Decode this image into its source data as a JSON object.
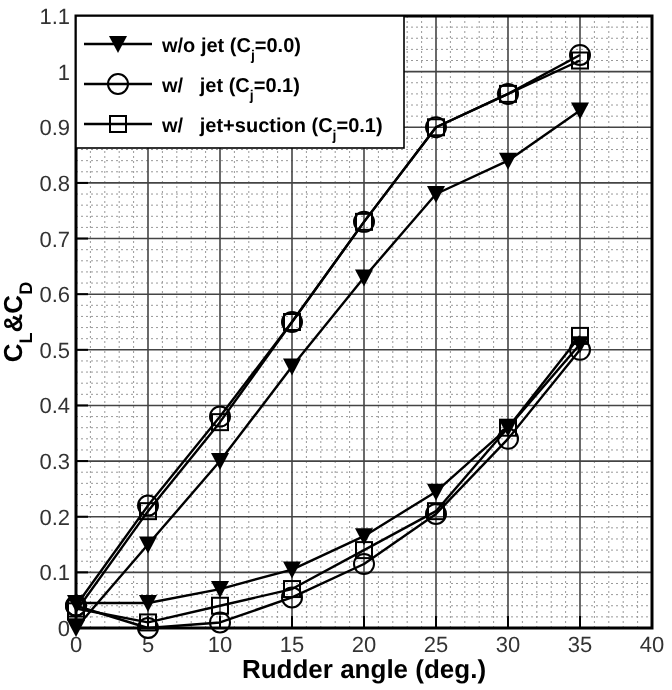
{
  "chart_data": {
    "type": "line",
    "xlabel": "Rudder angle (deg.)",
    "ylabel": "C$_{L}$&C$_{D}$",
    "x": [
      0,
      5,
      10,
      15,
      20,
      25,
      30,
      35
    ],
    "series": [
      {
        "name": "w/o jet (C$_{j}$=0.0)",
        "color": "#000000",
        "marker": "triangle",
        "values": [
          0.0,
          0.15,
          0.3,
          0.47,
          0.63,
          0.78,
          0.84,
          0.93
        ]
      },
      {
        "name": "w/   jet (C$_{j}$=0.1)",
        "color": "#000000",
        "marker": "circle",
        "values": [
          0.04,
          0.22,
          0.38,
          0.55,
          0.73,
          0.9,
          0.96,
          1.03
        ]
      },
      {
        "name": "w/   jet+suction (C$_{j}$=0.1)",
        "color": "#000000",
        "marker": "square",
        "values": [
          0.03,
          0.21,
          0.37,
          0.55,
          0.73,
          0.9,
          0.96,
          1.02
        ]
      },
      {
        "color": "#000000",
        "marker": "triangle",
        "values": [
          0.045,
          0.045,
          0.07,
          0.105,
          0.165,
          0.245,
          0.36,
          0.51
        ]
      },
      {
        "color": "#000000",
        "marker": "circle",
        "values": [
          0.04,
          0.0,
          0.01,
          0.055,
          0.115,
          0.205,
          0.34,
          0.5
        ]
      },
      {
        "color": "#000000",
        "marker": "square",
        "values": [
          0.035,
          0.01,
          0.04,
          0.07,
          0.14,
          0.21,
          0.36,
          0.525
        ]
      }
    ],
    "xlim": [
      0,
      40
    ],
    "xticks": [
      0,
      5,
      10,
      15,
      20,
      25,
      30,
      35,
      40
    ],
    "ylim": [
      0,
      1.1
    ],
    "yticks": [
      0,
      0.1,
      0.2,
      0.3,
      0.4,
      0.5,
      0.6,
      0.7,
      0.8,
      0.9,
      1,
      1.1
    ],
    "grid": true,
    "legend": "top left",
    "line_style": "solid"
  }
}
